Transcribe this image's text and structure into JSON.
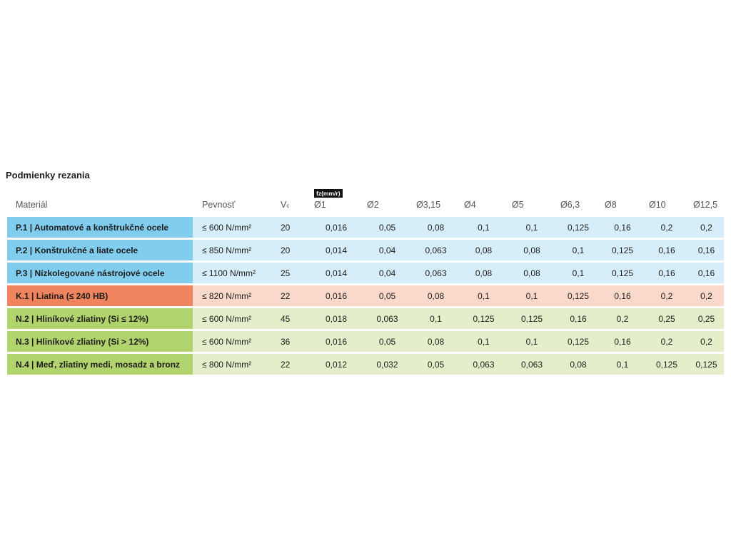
{
  "page": {
    "title": "Podmienky rezania"
  },
  "table": {
    "fz_badge": "fz(mm/r)",
    "headers": {
      "material": "Materiál",
      "pevnost": "Pevnosť",
      "vc_base": "V",
      "vc_sub": "c",
      "diameters": [
        "Ø1",
        "Ø2",
        "Ø3,15",
        "Ø4",
        "Ø5",
        "Ø6,3",
        "Ø8",
        "Ø10",
        "Ø12,5"
      ]
    },
    "colors": {
      "P": {
        "cell": "#80CDEF",
        "row": "#D6EEF9"
      },
      "K": {
        "cell": "#F0845F",
        "row": "#FAD9CB"
      },
      "N": {
        "cell": "#B2D46E",
        "row": "#E5EECA"
      }
    },
    "rows": [
      {
        "group": "P",
        "material": "P.1 | Automatové a konštrukčné ocele",
        "pevnost": "≤ 600 N/mm²",
        "vc": "20",
        "values": [
          "0,016",
          "0,05",
          "0,08",
          "0,1",
          "0,1",
          "0,125",
          "0,16",
          "0,2",
          "0,2"
        ]
      },
      {
        "group": "P",
        "material": "P.2 | Konštrukčné a liate ocele",
        "pevnost": "≤ 850 N/mm²",
        "vc": "20",
        "values": [
          "0,014",
          "0,04",
          "0,063",
          "0,08",
          "0,08",
          "0,1",
          "0,125",
          "0,16",
          "0,16"
        ]
      },
      {
        "group": "P",
        "material": "P.3 | Nízkolegované nástrojové ocele",
        "pevnost": "≤ 1100 N/mm²",
        "vc": "25",
        "values": [
          "0,014",
          "0,04",
          "0,063",
          "0,08",
          "0,08",
          "0,1",
          "0,125",
          "0,16",
          "0,16"
        ]
      },
      {
        "group": "K",
        "material": "K.1 | Liatina (≤ 240 HB)",
        "pevnost": "≤ 820 N/mm²",
        "vc": "22",
        "values": [
          "0,016",
          "0,05",
          "0,08",
          "0,1",
          "0,1",
          "0,125",
          "0,16",
          "0,2",
          "0,2"
        ]
      },
      {
        "group": "N",
        "material": "N.2 | Hliníkové zliatiny (Si ≤ 12%)",
        "pevnost": "≤ 600 N/mm²",
        "vc": "45",
        "values": [
          "0,018",
          "0,063",
          "0,1",
          "0,125",
          "0,125",
          "0,16",
          "0,2",
          "0,25",
          "0,25"
        ]
      },
      {
        "group": "N",
        "material": "N.3 | Hliníkové zliatiny (Si > 12%)",
        "pevnost": "≤ 600 N/mm²",
        "vc": "36",
        "values": [
          "0,016",
          "0,05",
          "0,08",
          "0,1",
          "0,1",
          "0,125",
          "0,16",
          "0,2",
          "0,2"
        ]
      },
      {
        "group": "N",
        "material": "N.4 | Meď, zliatiny medi, mosadz a bronz",
        "pevnost": "≤ 800 N/mm²",
        "vc": "22",
        "values": [
          "0,012",
          "0,032",
          "0,05",
          "0,063",
          "0,063",
          "0,08",
          "0,1",
          "0,125",
          "0,125"
        ]
      }
    ]
  }
}
